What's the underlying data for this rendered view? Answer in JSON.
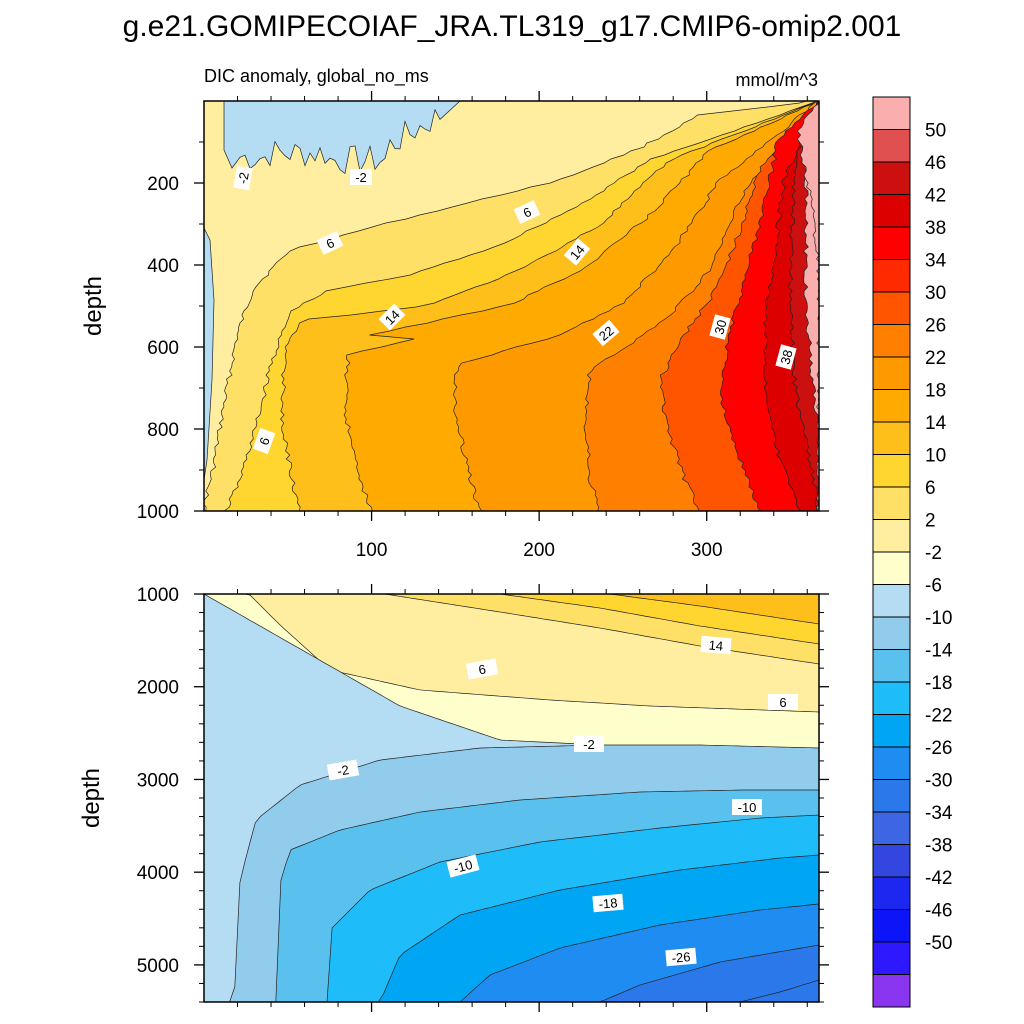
{
  "page": {
    "title": "g.e21.GOMIPECOIAF_JRA.TL319_g17.CMIP6-omip2.001",
    "subtitle_left": "DIC anomaly, global_no_ms",
    "subtitle_right": "mmol/m^3"
  },
  "chart_data": [
    {
      "type": "heatmap",
      "panel": "upper",
      "title": "DIC anomaly, global_no_ms",
      "units": "mmol/m^3",
      "xlabel": "",
      "ylabel": "depth",
      "xlim": [
        0,
        367
      ],
      "ylim": [
        1000,
        0
      ],
      "x_ticks": [
        "100",
        "200",
        "300"
      ],
      "y_ticks": [
        "200",
        "400",
        "600",
        "800",
        "1000"
      ],
      "contour_labels": [
        "-2",
        "-2",
        "6",
        "6",
        "14",
        "14",
        "22",
        "30",
        "38",
        "6"
      ]
    },
    {
      "type": "heatmap",
      "panel": "lower",
      "xlabel": "",
      "ylabel": "depth",
      "xlim": [
        0,
        367
      ],
      "ylim": [
        5400,
        1000
      ],
      "x_ticks": [],
      "y_ticks": [
        "1000",
        "2000",
        "3000",
        "4000",
        "5000"
      ],
      "contour_labels": [
        "14",
        "6",
        "6",
        "-2",
        "-2",
        "-10",
        "-10",
        "-18",
        "-26"
      ]
    }
  ],
  "colorbar": {
    "labels": [
      "50",
      "46",
      "42",
      "38",
      "34",
      "30",
      "26",
      "22",
      "18",
      "14",
      "10",
      "6",
      "2",
      "-2",
      "-6",
      "-10",
      "-14",
      "-18",
      "-22",
      "-26",
      "-30",
      "-34",
      "-38",
      "-42",
      "-46",
      "-50"
    ],
    "colors": [
      "#fbaeae",
      "#e05050",
      "#cc1010",
      "#dc0000",
      "#ff0000",
      "#ff2a00",
      "#ff5500",
      "#ff7f00",
      "#ff9900",
      "#ffaa00",
      "#ffbf1a",
      "#ffd530",
      "#ffe066",
      "#ffeea0",
      "#ffffcc",
      "#b4dcf2",
      "#92ccec",
      "#5ac0ee",
      "#1ebcf8",
      "#00a6f4",
      "#1e8cf0",
      "#2a78ea",
      "#3c66e4",
      "#3446e0",
      "#1c28f0",
      "#0c14f8",
      "#2e18ff",
      "#8a36f0"
    ]
  },
  "colors": {
    "upper_bands": [
      "#ffeea0",
      "#ffe066",
      "#ffd530",
      "#ffbf1a",
      "#ffaa00",
      "#ff9900",
      "#ff7f00",
      "#ff5500",
      "#ff0000",
      "#dc0000",
      "#cc1010",
      "#fbaeae"
    ],
    "lower_bands": [
      "#ffaa00",
      "#ffbf1a",
      "#ffd530",
      "#ffe066",
      "#ffeea0",
      "#ffffcc",
      "#b4dcf2",
      "#92ccec",
      "#5ac0ee",
      "#1ebcf8",
      "#00a6f4",
      "#1e8cf0",
      "#2a78ea"
    ],
    "surface_blue": "#b4dcf2"
  }
}
